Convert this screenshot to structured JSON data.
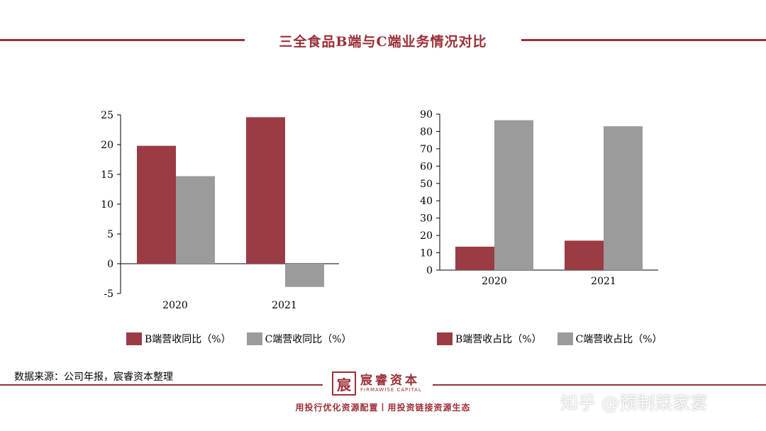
{
  "header": {
    "title": "三全食品B端与C端业务情况对比"
  },
  "colors": {
    "b_series": "#9b3b43",
    "c_series": "#9b9b9b",
    "accent": "#9b2f36"
  },
  "chart_data": [
    {
      "type": "bar",
      "categories": [
        "2020",
        "2021"
      ],
      "series": [
        {
          "name": "B端营收同比（%）",
          "values": [
            19.8,
            24.6
          ]
        },
        {
          "name": "C端营收同比（%）",
          "values": [
            14.7,
            -3.9
          ]
        }
      ],
      "ylim": [
        -5,
        25
      ],
      "yticks": [
        -5,
        0,
        5,
        10,
        15,
        20,
        25
      ],
      "legend": "bottom"
    },
    {
      "type": "bar",
      "categories": [
        "2020",
        "2021"
      ],
      "series": [
        {
          "name": "B端营收占比（%）",
          "values": [
            13.5,
            17
          ]
        },
        {
          "name": "C端营收占比（%）",
          "values": [
            86.5,
            83
          ]
        }
      ],
      "ylim": [
        0,
        90
      ],
      "yticks": [
        0,
        10,
        20,
        30,
        40,
        50,
        60,
        70,
        80,
        90
      ],
      "legend": "bottom"
    }
  ],
  "footer": {
    "source": "数据来源：公司年报，宸睿资本整理",
    "logo_mark": "宸",
    "logo_cn": "宸睿资本",
    "logo_en": "FIRMAWISE CAPITAL",
    "slogan": "用投行优化资源配置丨用投资链接资源生态",
    "watermark": "知乎 @预制菜家宴"
  }
}
